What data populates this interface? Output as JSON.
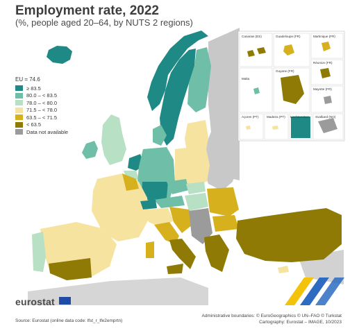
{
  "title": "Employment rate, 2022",
  "subtitle": "(%, people aged 20–64, by NUTS 2 regions)",
  "legend": {
    "eu_label": "EU = 74.6",
    "classes": [
      {
        "label": "≥ 83.5",
        "color": "#1f8a85"
      },
      {
        "label": "80.0 – < 83.5",
        "color": "#6fbfa8"
      },
      {
        "label": "78.0 – < 80.0",
        "color": "#b8e0c4"
      },
      {
        "label": "71.5 – < 78.0",
        "color": "#f7e3a0"
      },
      {
        "label": "63.5 – < 71.5",
        "color": "#d7b01d"
      },
      {
        "label": "< 63.5",
        "color": "#8f7a06"
      },
      {
        "label": "Data not available",
        "color": "#9b9b9b"
      }
    ]
  },
  "insets": {
    "canarias": "Canarias (ES)",
    "guadeloupe": "Guadeloupe (FR)",
    "martinique": "Martinique (FR)",
    "reunion": "Réunion (FR)",
    "guyane": "Guyane (FR)",
    "malta": "Malta",
    "mayotte": "Mayotte (FR)",
    "acores": "Açores (PT)",
    "madeira": "Madeira (PT)",
    "liechtenstein": "Liechtenstein",
    "svalbard": "Svalbard (NO)"
  },
  "brand": "eurostat",
  "footer": {
    "source": "Source: Eurostat (online data code: lfst_r_lfe2emprtn)",
    "boundaries": "Administrative boundaries: © EuroGeographics © UN–FAO © Turkstat",
    "cartography": "Cartography: Eurostat – IMAGE, 10/2023"
  },
  "colors": {
    "c1": "#1f8a85",
    "c2": "#6fbfa8",
    "c3": "#b8e0c4",
    "c4": "#f7e3a0",
    "c5": "#d7b01d",
    "c6": "#8f7a06",
    "na": "#9b9b9b",
    "non_eu": "#c8c8c8",
    "sea": "#ffffff"
  }
}
